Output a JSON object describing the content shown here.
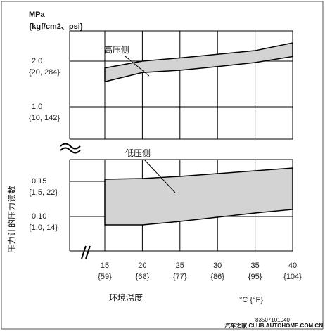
{
  "chart_data": {
    "type": "area",
    "title": "",
    "unit_line1": "MPa",
    "unit_line2": "{kgf/cm2、psi}",
    "ylabel": "压力计的压力读数",
    "xlabel": "环境温度",
    "xunit": "°C {°F}",
    "x_ticks": [
      {
        "value": 15,
        "label": "15",
        "sub": "{59}"
      },
      {
        "value": 20,
        "label": "20",
        "sub": "{68}"
      },
      {
        "value": 25,
        "label": "25",
        "sub": "{77}"
      },
      {
        "value": 30,
        "label": "30",
        "sub": "{86}"
      },
      {
        "value": 35,
        "label": "35",
        "sub": "{95}"
      },
      {
        "value": 40,
        "label": "40",
        "sub": "{104}"
      }
    ],
    "upper_panel": {
      "ylim": [
        0.55,
        2.4
      ],
      "y_ticks": [
        {
          "value": 2.0,
          "label": "2.0",
          "sub": "{20, 284}"
        },
        {
          "value": 1.0,
          "label": "1.0",
          "sub": "{10, 142}"
        }
      ],
      "series": [
        {
          "name": "高压侧",
          "x": [
            15,
            20,
            25,
            30,
            35,
            40
          ],
          "lower": [
            1.55,
            1.75,
            1.8,
            1.88,
            1.97,
            2.1
          ],
          "upper": [
            1.85,
            2.0,
            2.07,
            2.15,
            2.23,
            2.4
          ]
        }
      ]
    },
    "lower_panel": {
      "ylim": [
        0.05,
        0.19
      ],
      "y_ticks": [
        {
          "value": 0.15,
          "label": "0.15",
          "sub": "{1.5, 22}"
        },
        {
          "value": 0.1,
          "label": "0.10",
          "sub": "{1.0, 14}"
        }
      ],
      "series": [
        {
          "name": "低压侧",
          "x": [
            15,
            20,
            25,
            30,
            35,
            40
          ],
          "lower": [
            0.088,
            0.088,
            0.093,
            0.099,
            0.105,
            0.11
          ],
          "upper": [
            0.153,
            0.154,
            0.157,
            0.161,
            0.165,
            0.169
          ]
        }
      ]
    },
    "grid": true,
    "band_color": "#d3d3d3"
  },
  "watermark": {
    "code": "83507101040",
    "site": "汽车之家 CLUB.AUTOHOME.COM.CN"
  }
}
